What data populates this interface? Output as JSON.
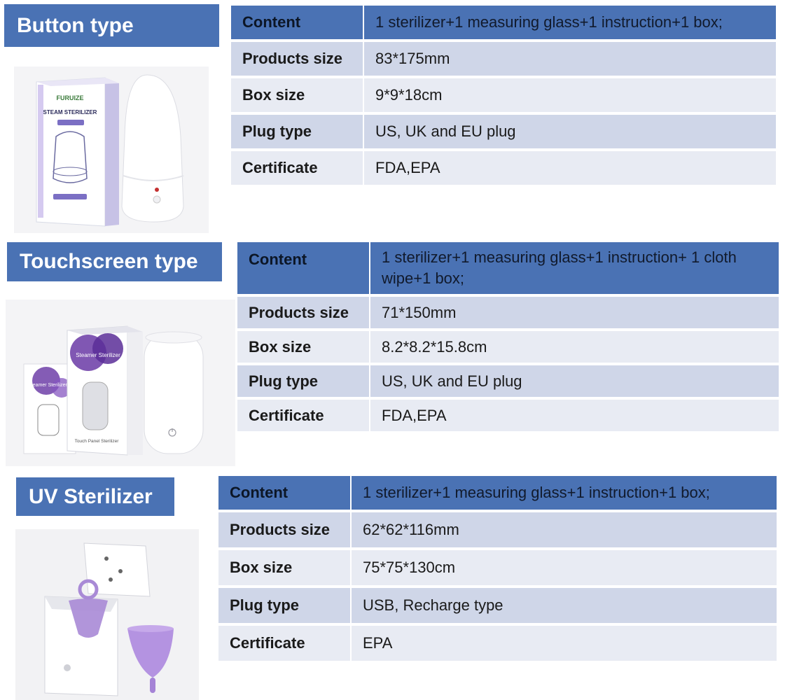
{
  "sections": [
    {
      "title": "Button type",
      "image_label": "button-type-steam-sterilizer-photo",
      "box_brand": "FURUIZE",
      "box_title": "STEAM STERILIZER",
      "rows": [
        {
          "label": "Content",
          "value": "1 sterilizer+1 measuring glass+1 instruction+1 box;"
        },
        {
          "label": "Products size",
          "value": "83*175mm"
        },
        {
          "label": "Box size",
          "value": "9*9*18cm"
        },
        {
          "label": "Plug type",
          "value": "US, UK and EU plug"
        },
        {
          "label": "Certificate",
          "value": "FDA,EPA"
        }
      ]
    },
    {
      "title": "Touchscreen type",
      "image_label": "touchscreen-type-steamer-sterilizer-photo",
      "box_title": "Steamer Sterilizer",
      "box_title_small": "Steamer Sterilizer",
      "box_caption": "Touch Panel Sterilizer",
      "rows": [
        {
          "label": "Content",
          "value": "1 sterilizer+1 measuring glass+1 instruction+ 1 cloth wipe+1 box;"
        },
        {
          "label": "Products size",
          "value": "71*150mm"
        },
        {
          "label": "Box size",
          "value": "8.2*8.2*15.8cm"
        },
        {
          "label": "Plug type",
          "value": "US, UK and EU plug"
        },
        {
          "label": "Certificate",
          "value": "FDA,EPA"
        }
      ]
    },
    {
      "title": "UV Sterilizer",
      "image_label": "uv-sterilizer-with-menstrual-cups-photo",
      "rows": [
        {
          "label": "Content",
          "value": "1 sterilizer+1 measuring glass+1 instruction+1 box;"
        },
        {
          "label": "Products size",
          "value": "62*62*116mm"
        },
        {
          "label": "Box size",
          "value": "75*75*130cm"
        },
        {
          "label": "Plug type",
          "value": "USB, Recharge type"
        },
        {
          "label": "Certificate",
          "value": "EPA"
        }
      ]
    }
  ],
  "colors": {
    "header_blue": "#4a72b4",
    "row_dark": "#cfd6e8",
    "row_light": "#e8ebf3",
    "cup_purple": "#a98ad6"
  }
}
